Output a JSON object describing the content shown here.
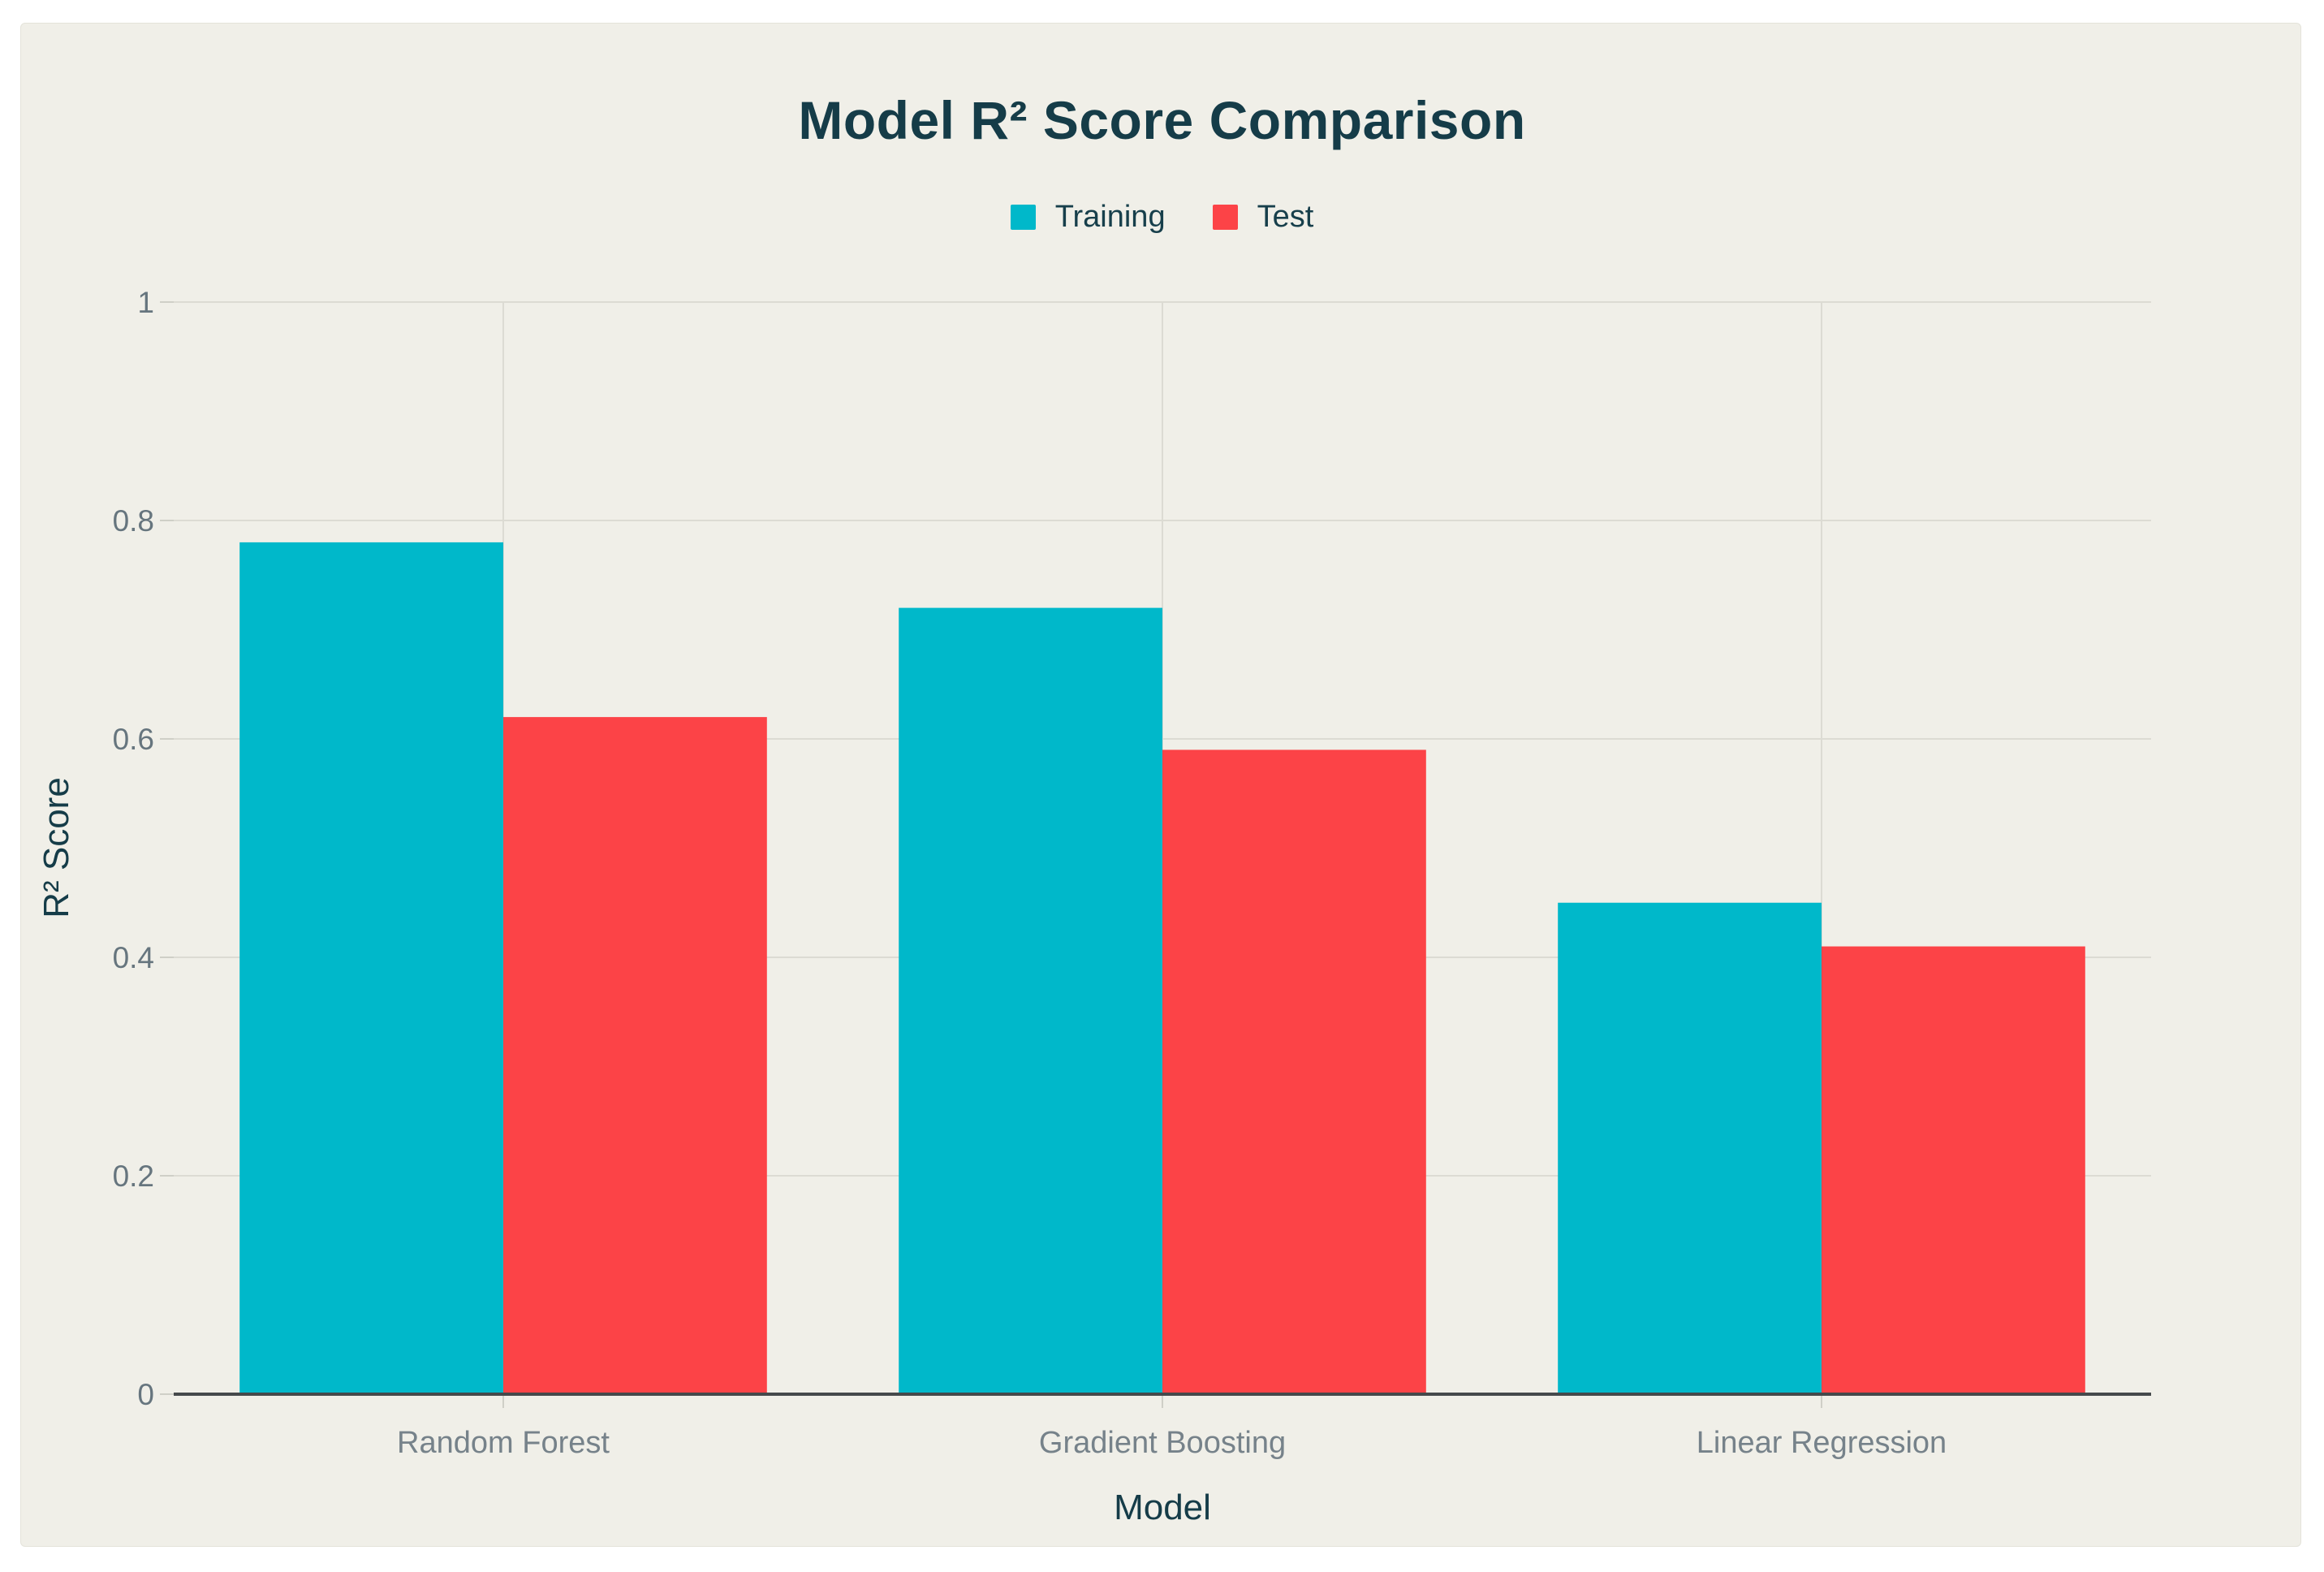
{
  "chart_data": {
    "type": "bar",
    "title": "Model R² Score Comparison",
    "xlabel": "Model",
    "ylabel": "R² Score",
    "categories": [
      "Random Forest",
      "Gradient Boosting",
      "Linear Regression"
    ],
    "series": [
      {
        "name": "Training",
        "color": "#00b8ca",
        "values": [
          0.78,
          0.72,
          0.45
        ]
      },
      {
        "name": "Test",
        "color": "#fc4347",
        "values": [
          0.62,
          0.59,
          0.41
        ]
      }
    ],
    "ylim": [
      0,
      1
    ],
    "yticks": [
      0,
      0.2,
      0.4,
      0.6,
      0.8,
      1
    ],
    "ytick_labels": [
      "0",
      "0.2",
      "0.4",
      "0.6",
      "0.8",
      "1"
    ],
    "grid": true,
    "legend_position": "top-center",
    "bar_group_gap": 0.2
  },
  "colors": {
    "panel_background": "#f0efe8",
    "outer_background": "#ffffff",
    "title_text": "#153c48",
    "axis_title_text": "#153c48",
    "ytick_text": "#66757e",
    "xtick_text": "#76828a",
    "gridline": "#dcdbd3",
    "tick_mark": "#cfcfc7",
    "zero_line": "#45494b",
    "training_bar": "#00b8ca",
    "test_bar": "#fc4347"
  }
}
